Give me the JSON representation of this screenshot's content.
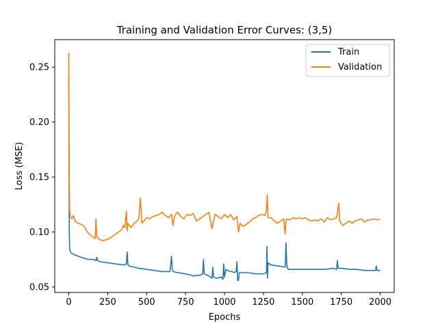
{
  "chart_data": {
    "type": "line",
    "title": "Training and Validation Error Curves: (3,5)",
    "xlabel": "Epochs",
    "ylabel": "Loss (MSE)",
    "xlim": [
      -90,
      2090
    ],
    "ylim": [
      0.045,
      0.275
    ],
    "x_ticks": [
      0,
      250,
      500,
      750,
      1000,
      1250,
      1500,
      1750,
      2000
    ],
    "y_ticks": [
      0.05,
      0.1,
      0.15,
      0.2,
      0.25
    ],
    "y_tick_labels": [
      "0.05",
      "0.10",
      "0.15",
      "0.20",
      "0.25"
    ],
    "grid": false,
    "legend": "top-right",
    "series": [
      {
        "name": "Train",
        "color": "#1f77b4",
        "x": [
          0,
          3,
          6,
          10,
          15,
          25,
          40,
          60,
          80,
          100,
          130,
          160,
          175,
          180,
          185,
          200,
          250,
          300,
          350,
          370,
          375,
          380,
          390,
          420,
          450,
          500,
          550,
          600,
          650,
          660,
          665,
          670,
          700,
          750,
          780,
          800,
          850,
          860,
          865,
          870,
          900,
          920,
          925,
          930,
          950,
          980,
          990,
          995,
          1000,
          1010,
          1020,
          1040,
          1050,
          1060,
          1075,
          1080,
          1085,
          1090,
          1095,
          1100,
          1150,
          1200,
          1250,
          1270,
          1273,
          1276,
          1280,
          1285,
          1290,
          1300,
          1350,
          1390,
          1395,
          1400,
          1405,
          1410,
          1450,
          1500,
          1550,
          1600,
          1650,
          1700,
          1720,
          1725,
          1730,
          1750,
          1800,
          1850,
          1900,
          1950,
          1970,
          1975,
          1980,
          2000
        ],
        "y": [
          0.24,
          0.1,
          0.085,
          0.082,
          0.081,
          0.08,
          0.079,
          0.078,
          0.077,
          0.076,
          0.075,
          0.075,
          0.074,
          0.077,
          0.074,
          0.073,
          0.072,
          0.071,
          0.07,
          0.071,
          0.082,
          0.07,
          0.069,
          0.068,
          0.067,
          0.066,
          0.065,
          0.064,
          0.064,
          0.078,
          0.066,
          0.064,
          0.063,
          0.062,
          0.061,
          0.06,
          0.061,
          0.062,
          0.075,
          0.062,
          0.06,
          0.058,
          0.068,
          0.059,
          0.058,
          0.059,
          0.057,
          0.071,
          0.059,
          0.066,
          0.065,
          0.064,
          0.064,
          0.063,
          0.064,
          0.073,
          0.056,
          0.056,
          0.063,
          0.063,
          0.063,
          0.062,
          0.062,
          0.063,
          0.087,
          0.058,
          0.072,
          0.071,
          0.071,
          0.07,
          0.069,
          0.068,
          0.09,
          0.071,
          0.067,
          0.066,
          0.066,
          0.066,
          0.066,
          0.066,
          0.066,
          0.067,
          0.066,
          0.074,
          0.067,
          0.067,
          0.066,
          0.066,
          0.065,
          0.065,
          0.065,
          0.069,
          0.065,
          0.065
        ]
      },
      {
        "name": "Validation",
        "color": "#ff7f0e",
        "x": [
          0,
          3,
          6,
          10,
          20,
          30,
          40,
          60,
          80,
          100,
          120,
          140,
          160,
          170,
          175,
          180,
          190,
          200,
          220,
          240,
          260,
          280,
          300,
          320,
          340,
          350,
          360,
          370,
          375,
          380,
          390,
          400,
          420,
          440,
          450,
          460,
          470,
          500,
          520,
          540,
          560,
          580,
          600,
          620,
          640,
          660,
          670,
          680,
          700,
          720,
          740,
          760,
          780,
          800,
          820,
          840,
          860,
          880,
          900,
          920,
          940,
          960,
          980,
          1000,
          1020,
          1040,
          1060,
          1080,
          1090,
          1100,
          1120,
          1140,
          1160,
          1180,
          1200,
          1220,
          1240,
          1260,
          1270,
          1275,
          1280,
          1300,
          1320,
          1340,
          1360,
          1380,
          1390,
          1395,
          1400,
          1420,
          1440,
          1460,
          1480,
          1500,
          1520,
          1540,
          1560,
          1580,
          1600,
          1620,
          1640,
          1660,
          1680,
          1700,
          1720,
          1735,
          1740,
          1760,
          1780,
          1800,
          1820,
          1840,
          1860,
          1880,
          1900,
          1920,
          1940,
          1960,
          1980,
          2000
        ],
        "y": [
          0.263,
          0.15,
          0.12,
          0.114,
          0.112,
          0.115,
          0.11,
          0.108,
          0.107,
          0.105,
          0.1,
          0.097,
          0.095,
          0.094,
          0.112,
          0.096,
          0.094,
          0.093,
          0.092,
          0.093,
          0.094,
          0.096,
          0.098,
          0.1,
          0.102,
          0.106,
          0.104,
          0.119,
          0.101,
          0.108,
          0.106,
          0.104,
          0.108,
          0.11,
          0.112,
          0.131,
          0.108,
          0.113,
          0.112,
          0.114,
          0.115,
          0.116,
          0.118,
          0.115,
          0.113,
          0.116,
          0.106,
          0.115,
          0.118,
          0.114,
          0.112,
          0.116,
          0.115,
          0.117,
          0.11,
          0.112,
          0.114,
          0.116,
          0.118,
          0.103,
          0.116,
          0.114,
          0.112,
          0.116,
          0.113,
          0.116,
          0.111,
          0.114,
          0.1,
          0.108,
          0.105,
          0.107,
          0.109,
          0.112,
          0.113,
          0.115,
          0.116,
          0.115,
          0.12,
          0.134,
          0.113,
          0.113,
          0.11,
          0.108,
          0.11,
          0.112,
          0.098,
          0.11,
          0.112,
          0.111,
          0.113,
          0.112,
          0.113,
          0.112,
          0.113,
          0.111,
          0.11,
          0.111,
          0.11,
          0.112,
          0.109,
          0.113,
          0.111,
          0.112,
          0.113,
          0.126,
          0.11,
          0.106,
          0.108,
          0.11,
          0.108,
          0.11,
          0.111,
          0.112,
          0.109,
          0.111,
          0.111,
          0.112,
          0.111,
          0.112
        ]
      }
    ]
  }
}
